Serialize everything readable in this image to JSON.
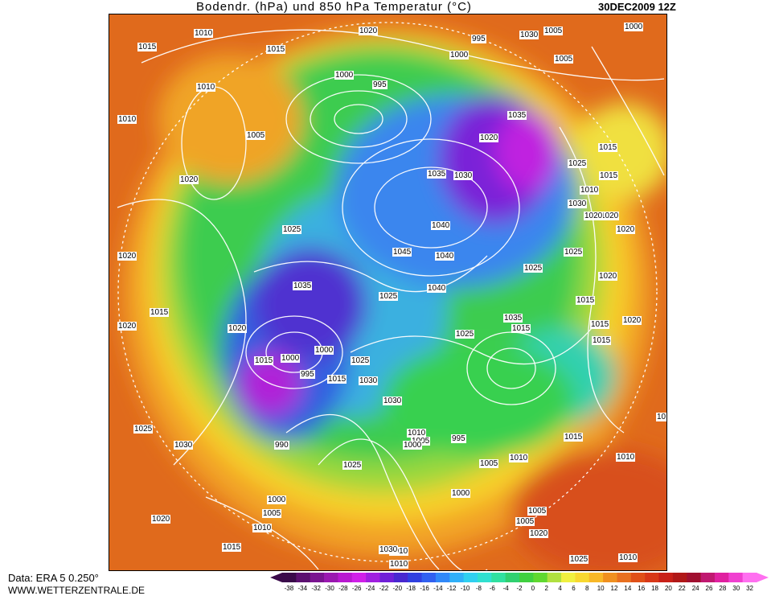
{
  "header": {
    "title": "Bodendr. (hPa) und 850 hPa Temperatur (°C)",
    "datetime": "30DEC2009 12Z"
  },
  "footer": {
    "data_source": "Data: ERA 5 0.250°",
    "website": "WWW.WETTERZENTRALE.DE"
  },
  "legend": {
    "ticks": [
      "-38",
      "-34",
      "-32",
      "-30",
      "-28",
      "-26",
      "-24",
      "-22",
      "-20",
      "-18",
      "-16",
      "-14",
      "-12",
      "-10",
      "-8",
      "-6",
      "-4",
      "-2",
      "0",
      "2",
      "4",
      "6",
      "8",
      "10",
      "12",
      "14",
      "16",
      "18",
      "20",
      "22",
      "24",
      "26",
      "28",
      "30",
      "32"
    ],
    "colors": [
      "#3a0a4a",
      "#5b1070",
      "#7a1490",
      "#9a18b0",
      "#b818d0",
      "#d020e8",
      "#a020e0",
      "#7020d8",
      "#4828d0",
      "#3040e0",
      "#3060f0",
      "#3088f8",
      "#30b0f8",
      "#30d0f0",
      "#30e0d0",
      "#30e0a0",
      "#30d070",
      "#40d040",
      "#60d830",
      "#b0e040",
      "#f0f040",
      "#f8d830",
      "#f8b828",
      "#f09020",
      "#e87020",
      "#e05018",
      "#d83818",
      "#c82018",
      "#b01818",
      "#a01030",
      "#c01870",
      "#e020a0",
      "#f040d0",
      "#ff70f0"
    ]
  },
  "map": {
    "isobar_labels": [
      {
        "text": "1015"
      },
      {
        "text": "1010"
      },
      {
        "text": "1020"
      },
      {
        "text": "1005"
      },
      {
        "text": "1000"
      },
      {
        "text": "1005"
      },
      {
        "text": "1000"
      },
      {
        "text": "995"
      },
      {
        "text": "1000"
      },
      {
        "text": "995"
      },
      {
        "text": "1010"
      },
      {
        "text": "1005"
      },
      {
        "text": "1015"
      },
      {
        "text": "1010"
      },
      {
        "text": "1015"
      },
      {
        "text": "1020"
      },
      {
        "text": "1025"
      },
      {
        "text": "1030"
      },
      {
        "text": "1020"
      },
      {
        "text": "1025"
      },
      {
        "text": "1035"
      },
      {
        "text": "1030"
      },
      {
        "text": "1040"
      },
      {
        "text": "1045"
      },
      {
        "text": "1040"
      },
      {
        "text": "1020"
      },
      {
        "text": "1035"
      },
      {
        "text": "1030"
      },
      {
        "text": "1025"
      },
      {
        "text": "1040"
      },
      {
        "text": "1035"
      },
      {
        "text": "1015"
      },
      {
        "text": "1020"
      },
      {
        "text": "1015"
      },
      {
        "text": "1020"
      },
      {
        "text": "1015"
      },
      {
        "text": "1020"
      },
      {
        "text": "1000"
      },
      {
        "text": "995"
      },
      {
        "text": "1000"
      },
      {
        "text": "1015"
      },
      {
        "text": "1025"
      },
      {
        "text": "1030"
      },
      {
        "text": "1030"
      },
      {
        "text": "1025"
      },
      {
        "text": "1020"
      },
      {
        "text": "1015"
      },
      {
        "text": "1025"
      },
      {
        "text": "1030"
      },
      {
        "text": "990"
      },
      {
        "text": "1025"
      },
      {
        "text": "1010"
      },
      {
        "text": "1005"
      },
      {
        "text": "1000"
      },
      {
        "text": "995"
      },
      {
        "text": "1000"
      },
      {
        "text": "1005"
      },
      {
        "text": "1010"
      },
      {
        "text": "1000"
      },
      {
        "text": "1005"
      },
      {
        "text": "1010"
      },
      {
        "text": "1015"
      },
      {
        "text": "1020"
      },
      {
        "text": "1015"
      },
      {
        "text": "1010"
      },
      {
        "text": "1015"
      },
      {
        "text": "1020"
      },
      {
        "text": "1020"
      },
      {
        "text": "1015"
      },
      {
        "text": "1025"
      },
      {
        "text": "1020"
      },
      {
        "text": "1010"
      },
      {
        "text": "1015"
      },
      {
        "text": "1005"
      },
      {
        "text": "1010"
      },
      {
        "text": "1030"
      },
      {
        "text": "1025"
      },
      {
        "text": "1010"
      },
      {
        "text": "1020"
      },
      {
        "text": "1015"
      },
      {
        "text": "1010"
      },
      {
        "text": "1005"
      },
      {
        "text": "1035"
      },
      {
        "text": "1025"
      }
    ]
  }
}
